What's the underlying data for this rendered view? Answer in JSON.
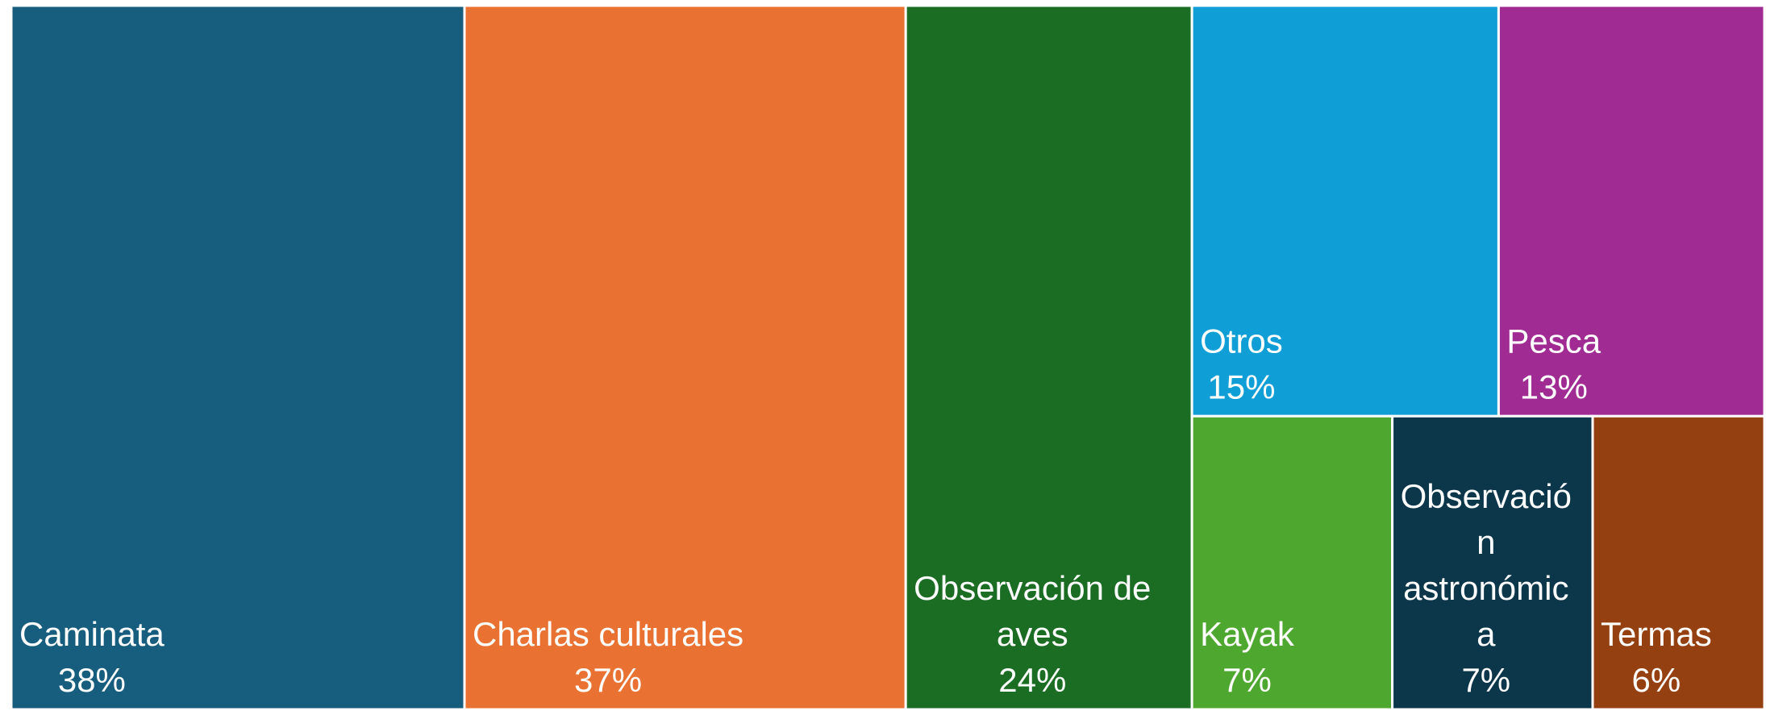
{
  "chart_data": {
    "type": "treemap",
    "categories": [
      "Caminata",
      "Charlas culturales",
      "Observación de aves",
      "Otros",
      "Pesca",
      "Kayak",
      "Observación astronómica",
      "Termas"
    ],
    "values": [
      38,
      37,
      24,
      15,
      13,
      7,
      7,
      6
    ],
    "value_labels": [
      "38%",
      "37%",
      "24%",
      "15%",
      "13%",
      "7%",
      "7%",
      "6%"
    ],
    "colors": [
      "#175e7e",
      "#e97132",
      "#1b6d24",
      "#0f9ed5",
      "#a02b93",
      "#4ea72e",
      "#0c3649",
      "#954010"
    ]
  }
}
